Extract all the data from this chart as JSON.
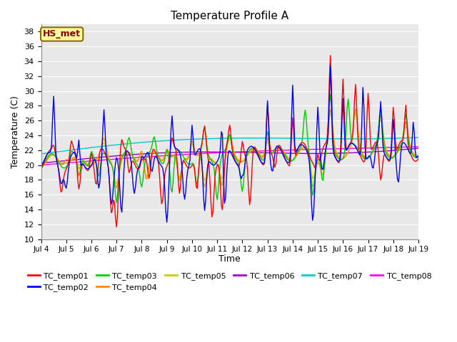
{
  "title": "Temperature Profile A",
  "xlabel": "Time",
  "ylabel": "Temperature (C)",
  "ylim": [
    10,
    39
  ],
  "yticks": [
    10,
    12,
    14,
    16,
    18,
    20,
    22,
    24,
    26,
    28,
    30,
    32,
    34,
    36,
    38
  ],
  "annotation_text": "HS_met",
  "annotation_color": "#8B0000",
  "annotation_bg": "#FFFF99",
  "annotation_border": "#8B6914",
  "series_colors": {
    "TC_temp01": "#FF0000",
    "TC_temp02": "#0000FF",
    "TC_temp03": "#00CC00",
    "TC_temp04": "#FF8C00",
    "TC_temp05": "#CCCC00",
    "TC_temp06": "#9900CC",
    "TC_temp07": "#00CCCC",
    "TC_temp08": "#FF00FF"
  },
  "plot_bg": "#E8E8E8",
  "fig_bg": "#FFFFFF",
  "grid_color": "#FFFFFF",
  "n_points": 361,
  "day_start": 4,
  "n_days": 16
}
